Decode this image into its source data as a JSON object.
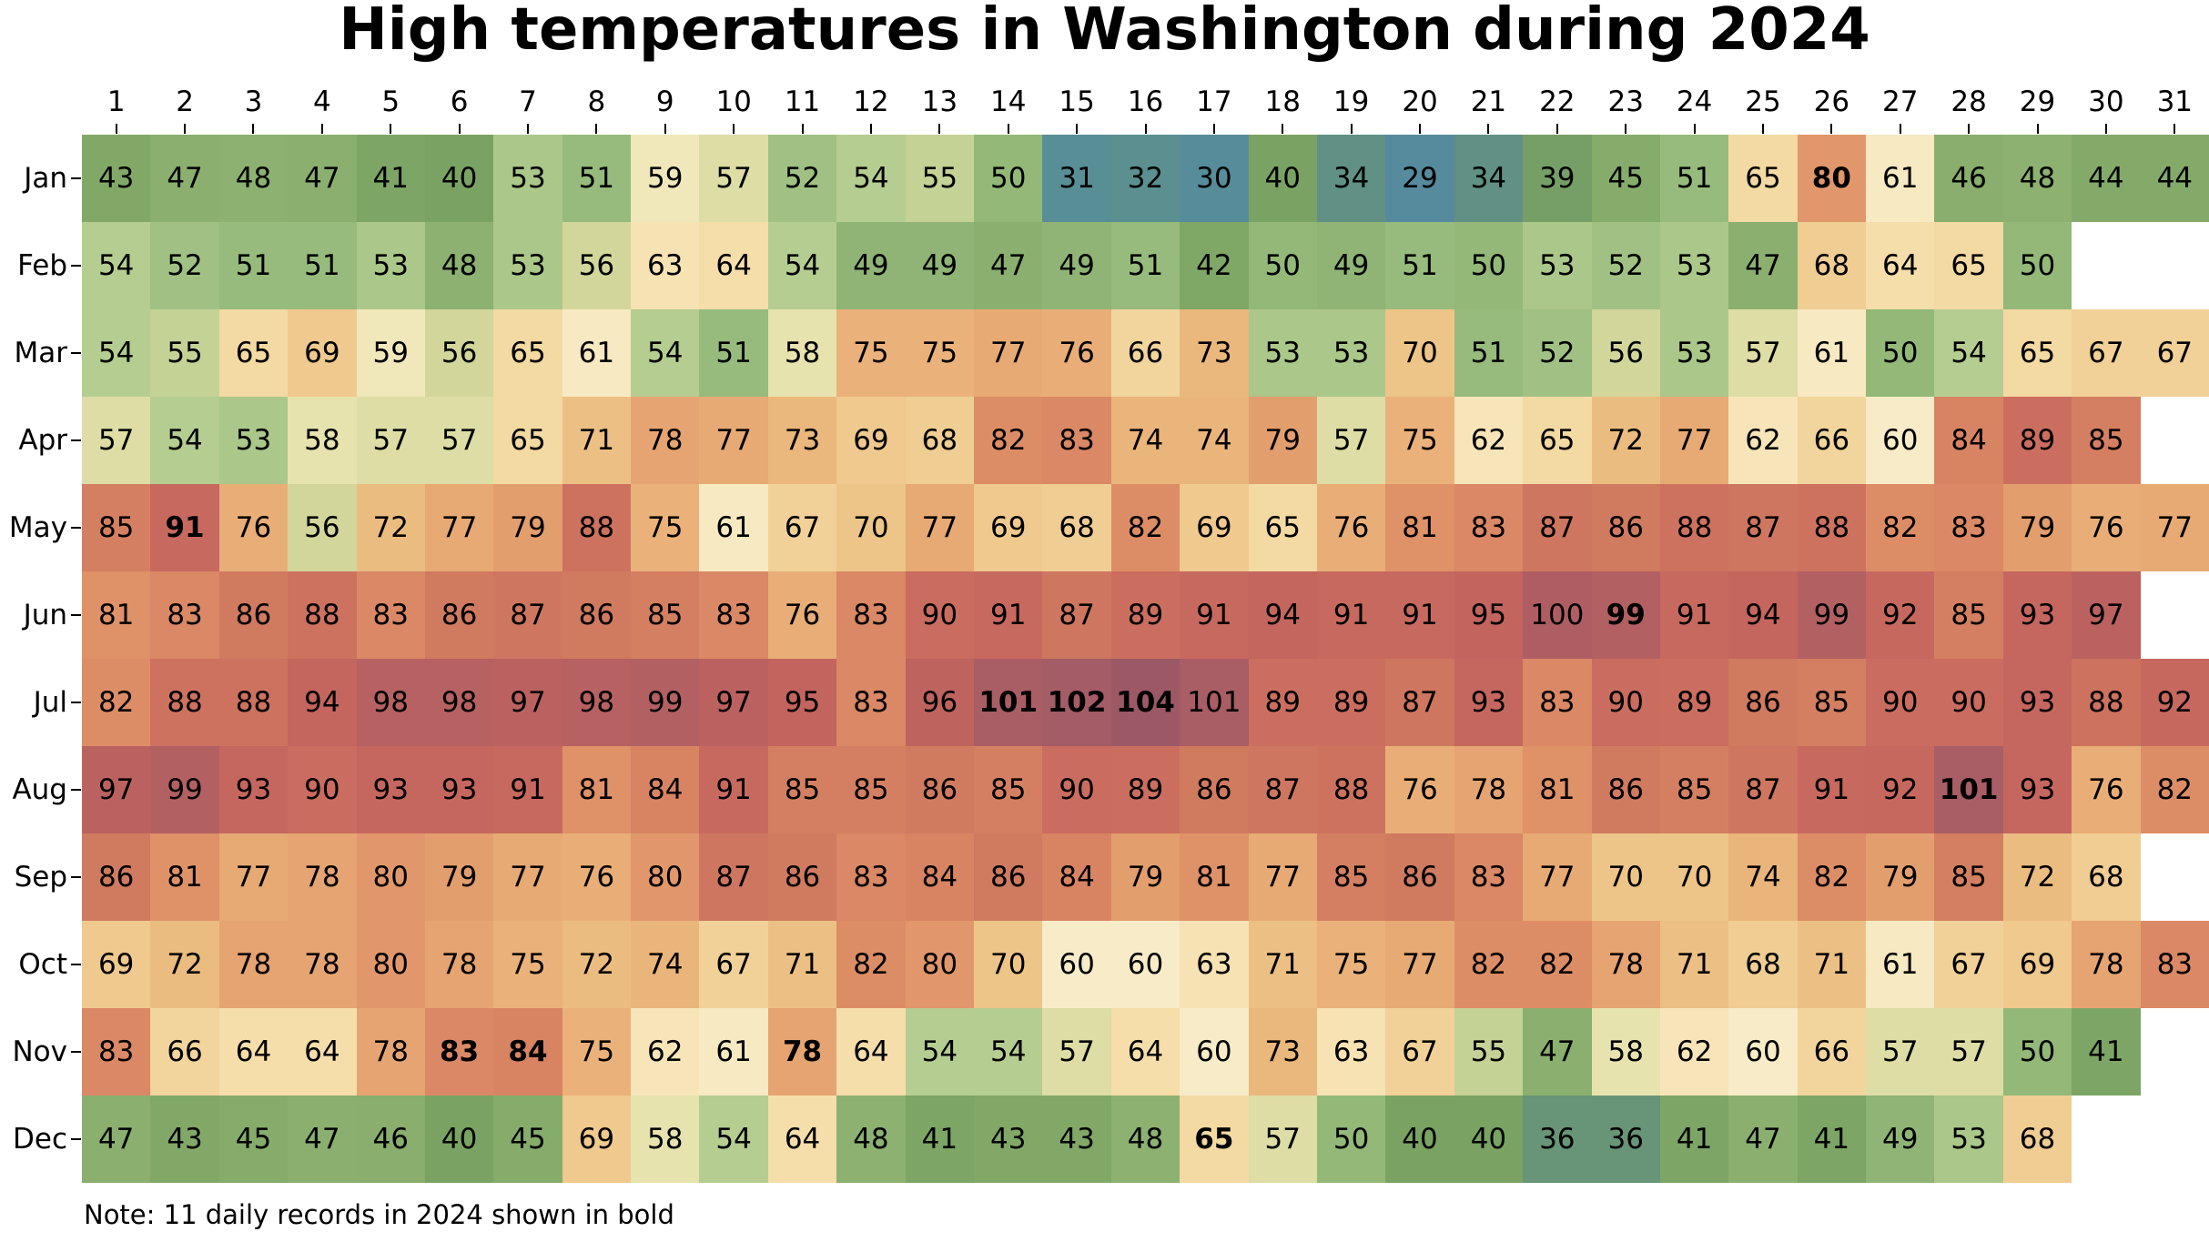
{
  "page": {
    "background": "#ffffff"
  },
  "chart_data": {
    "type": "heatmap",
    "title": "High temperatures in Washington during 2024",
    "note": "Note: 11 daily records in 2024 shown in bold",
    "xlabel": "",
    "ylabel": "",
    "legend": "none",
    "grid": "off",
    "day_labels": [
      "1",
      "2",
      "3",
      "4",
      "5",
      "6",
      "7",
      "8",
      "9",
      "10",
      "11",
      "12",
      "13",
      "14",
      "15",
      "16",
      "17",
      "18",
      "19",
      "20",
      "21",
      "22",
      "23",
      "24",
      "25",
      "26",
      "27",
      "28",
      "29",
      "30",
      "31"
    ],
    "months": [
      "Jan",
      "Feb",
      "Mar",
      "Apr",
      "May",
      "Jun",
      "Jul",
      "Aug",
      "Sep",
      "Oct",
      "Nov",
      "Dec"
    ],
    "series": [
      {
        "name": "Jan",
        "values": [
          43,
          47,
          48,
          47,
          41,
          40,
          53,
          51,
          59,
          57,
          52,
          54,
          55,
          50,
          31,
          32,
          30,
          40,
          34,
          29,
          34,
          39,
          45,
          51,
          65,
          80,
          61,
          46,
          48,
          44,
          44
        ]
      },
      {
        "name": "Feb",
        "values": [
          54,
          52,
          51,
          51,
          53,
          48,
          53,
          56,
          63,
          64,
          54,
          49,
          49,
          47,
          49,
          51,
          42,
          50,
          49,
          51,
          50,
          53,
          52,
          53,
          47,
          68,
          64,
          65,
          50
        ]
      },
      {
        "name": "Mar",
        "values": [
          54,
          55,
          65,
          69,
          59,
          56,
          65,
          61,
          54,
          51,
          58,
          75,
          75,
          77,
          76,
          66,
          73,
          53,
          53,
          70,
          51,
          52,
          56,
          53,
          57,
          61,
          50,
          54,
          65,
          67,
          67
        ]
      },
      {
        "name": "Apr",
        "values": [
          57,
          54,
          53,
          58,
          57,
          57,
          65,
          71,
          78,
          77,
          73,
          69,
          68,
          82,
          83,
          74,
          74,
          79,
          57,
          75,
          62,
          65,
          72,
          77,
          62,
          66,
          60,
          84,
          89,
          85
        ]
      },
      {
        "name": "May",
        "values": [
          85,
          91,
          76,
          56,
          72,
          77,
          79,
          88,
          75,
          61,
          67,
          70,
          77,
          69,
          68,
          82,
          69,
          65,
          76,
          81,
          83,
          87,
          86,
          88,
          87,
          88,
          82,
          83,
          79,
          76,
          77
        ]
      },
      {
        "name": "Jun",
        "values": [
          81,
          83,
          86,
          88,
          83,
          86,
          87,
          86,
          85,
          83,
          76,
          83,
          90,
          91,
          87,
          89,
          91,
          94,
          91,
          91,
          95,
          100,
          99,
          91,
          94,
          99,
          92,
          85,
          93,
          97
        ]
      },
      {
        "name": "Jul",
        "values": [
          82,
          88,
          88,
          94,
          98,
          98,
          97,
          98,
          99,
          97,
          95,
          83,
          96,
          101,
          102,
          104,
          101,
          89,
          89,
          87,
          93,
          83,
          90,
          89,
          86,
          85,
          90,
          90,
          93,
          88,
          92
        ]
      },
      {
        "name": "Aug",
        "values": [
          97,
          99,
          93,
          90,
          93,
          93,
          91,
          81,
          84,
          91,
          85,
          85,
          86,
          85,
          90,
          89,
          86,
          87,
          88,
          76,
          78,
          81,
          86,
          85,
          87,
          91,
          92,
          101,
          93,
          76,
          82
        ]
      },
      {
        "name": "Sep",
        "values": [
          86,
          81,
          77,
          78,
          80,
          79,
          77,
          76,
          80,
          87,
          86,
          83,
          84,
          86,
          84,
          79,
          81,
          77,
          85,
          86,
          83,
          77,
          70,
          70,
          74,
          82,
          79,
          85,
          72,
          68
        ]
      },
      {
        "name": "Oct",
        "values": [
          69,
          72,
          78,
          78,
          80,
          78,
          75,
          72,
          74,
          67,
          71,
          82,
          80,
          70,
          60,
          60,
          63,
          71,
          75,
          77,
          82,
          82,
          78,
          71,
          68,
          71,
          61,
          67,
          69,
          78,
          83
        ]
      },
      {
        "name": "Nov",
        "values": [
          83,
          66,
          64,
          64,
          78,
          83,
          84,
          75,
          62,
          61,
          78,
          64,
          54,
          54,
          57,
          64,
          60,
          73,
          63,
          67,
          55,
          47,
          58,
          62,
          60,
          66,
          57,
          57,
          50,
          41
        ]
      },
      {
        "name": "Dec",
        "values": [
          47,
          43,
          45,
          47,
          46,
          40,
          45,
          69,
          58,
          54,
          64,
          48,
          41,
          43,
          43,
          48,
          65,
          57,
          50,
          40,
          40,
          36,
          36,
          41,
          47,
          41,
          49,
          53,
          68
        ]
      }
    ],
    "records_bold": [
      {
        "month": "Jan",
        "day": 26,
        "value": 80
      },
      {
        "month": "May",
        "day": 2,
        "value": 91
      },
      {
        "month": "Jun",
        "day": 23,
        "value": 99
      },
      {
        "month": "Jul",
        "day": 14,
        "value": 101
      },
      {
        "month": "Jul",
        "day": 15,
        "value": 102
      },
      {
        "month": "Jul",
        "day": 16,
        "value": 104
      },
      {
        "month": "Aug",
        "day": 28,
        "value": 101
      },
      {
        "month": "Nov",
        "day": 6,
        "value": 83
      },
      {
        "month": "Nov",
        "day": 7,
        "value": 84
      },
      {
        "month": "Nov",
        "day": 11,
        "value": 78
      },
      {
        "month": "Dec",
        "day": 17,
        "value": 65
      }
    ],
    "value_range": [
      29,
      104
    ],
    "colorscale": {
      "stops": [
        [
          29,
          "#568a9d"
        ],
        [
          31,
          "#588e96"
        ],
        [
          34,
          "#609184"
        ],
        [
          36,
          "#689478"
        ],
        [
          40,
          "#7aa363"
        ],
        [
          44,
          "#84aa69"
        ],
        [
          48,
          "#8db171"
        ],
        [
          51,
          "#96bb7c"
        ],
        [
          54,
          "#b5cd90"
        ],
        [
          56,
          "#d2d69b"
        ],
        [
          58,
          "#e7e3ae"
        ],
        [
          60,
          "#f8ecc8"
        ],
        [
          63,
          "#f6e2b2"
        ],
        [
          65,
          "#f3d9a2"
        ],
        [
          68,
          "#f0cd93"
        ],
        [
          70,
          "#edc588"
        ],
        [
          73,
          "#eab77c"
        ],
        [
          75,
          "#eab27a"
        ],
        [
          77,
          "#e7aa74"
        ],
        [
          81,
          "#df9168"
        ],
        [
          84,
          "#d88463"
        ],
        [
          86,
          "#d07a60"
        ],
        [
          89,
          "#cb6e5f"
        ],
        [
          91,
          "#c8695f"
        ],
        [
          95,
          "#c3645e"
        ],
        [
          98,
          "#b76162"
        ],
        [
          100,
          "#ae5e63"
        ],
        [
          102,
          "#a45c66"
        ],
        [
          104,
          "#9c5965"
        ]
      ]
    }
  }
}
